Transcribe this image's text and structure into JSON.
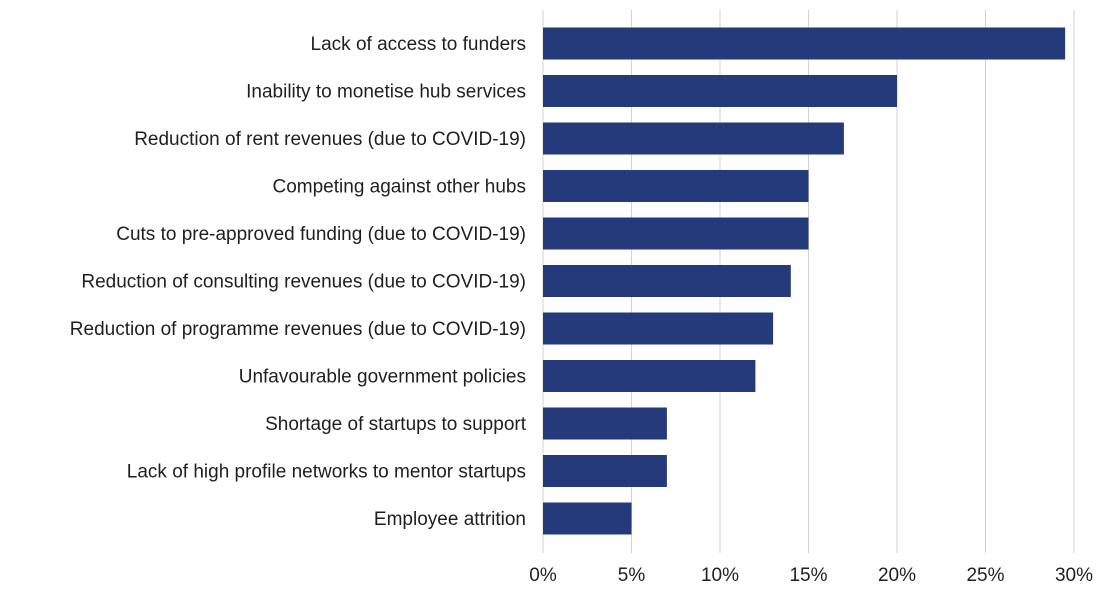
{
  "chart_data": {
    "type": "bar",
    "orientation": "horizontal",
    "categories": [
      "Lack of access to funders",
      "Inability to monetise hub services",
      "Reduction of rent revenues (due to COVID-19)",
      "Competing against other hubs",
      "Cuts to pre-approved funding (due to COVID-19)",
      "Reduction of consulting revenues (due to COVID-19)",
      "Reduction of programme revenues (due to COVID-19)",
      "Unfavourable government policies",
      "Shortage of startups to support",
      "Lack of high profile networks to mentor startups",
      "Employee attrition"
    ],
    "values": [
      29.5,
      20,
      17,
      15,
      15,
      14,
      13,
      12,
      7,
      7,
      5
    ],
    "x_ticks": [
      "0%",
      "5%",
      "10%",
      "15%",
      "20%",
      "25%",
      "30%"
    ],
    "xlim": [
      0,
      30
    ],
    "xlabel": "",
    "ylabel": "",
    "title": "",
    "grid": "vertical",
    "legend": "none",
    "bar_color": "#253A7A",
    "grid_color": "#D3D3D3"
  }
}
